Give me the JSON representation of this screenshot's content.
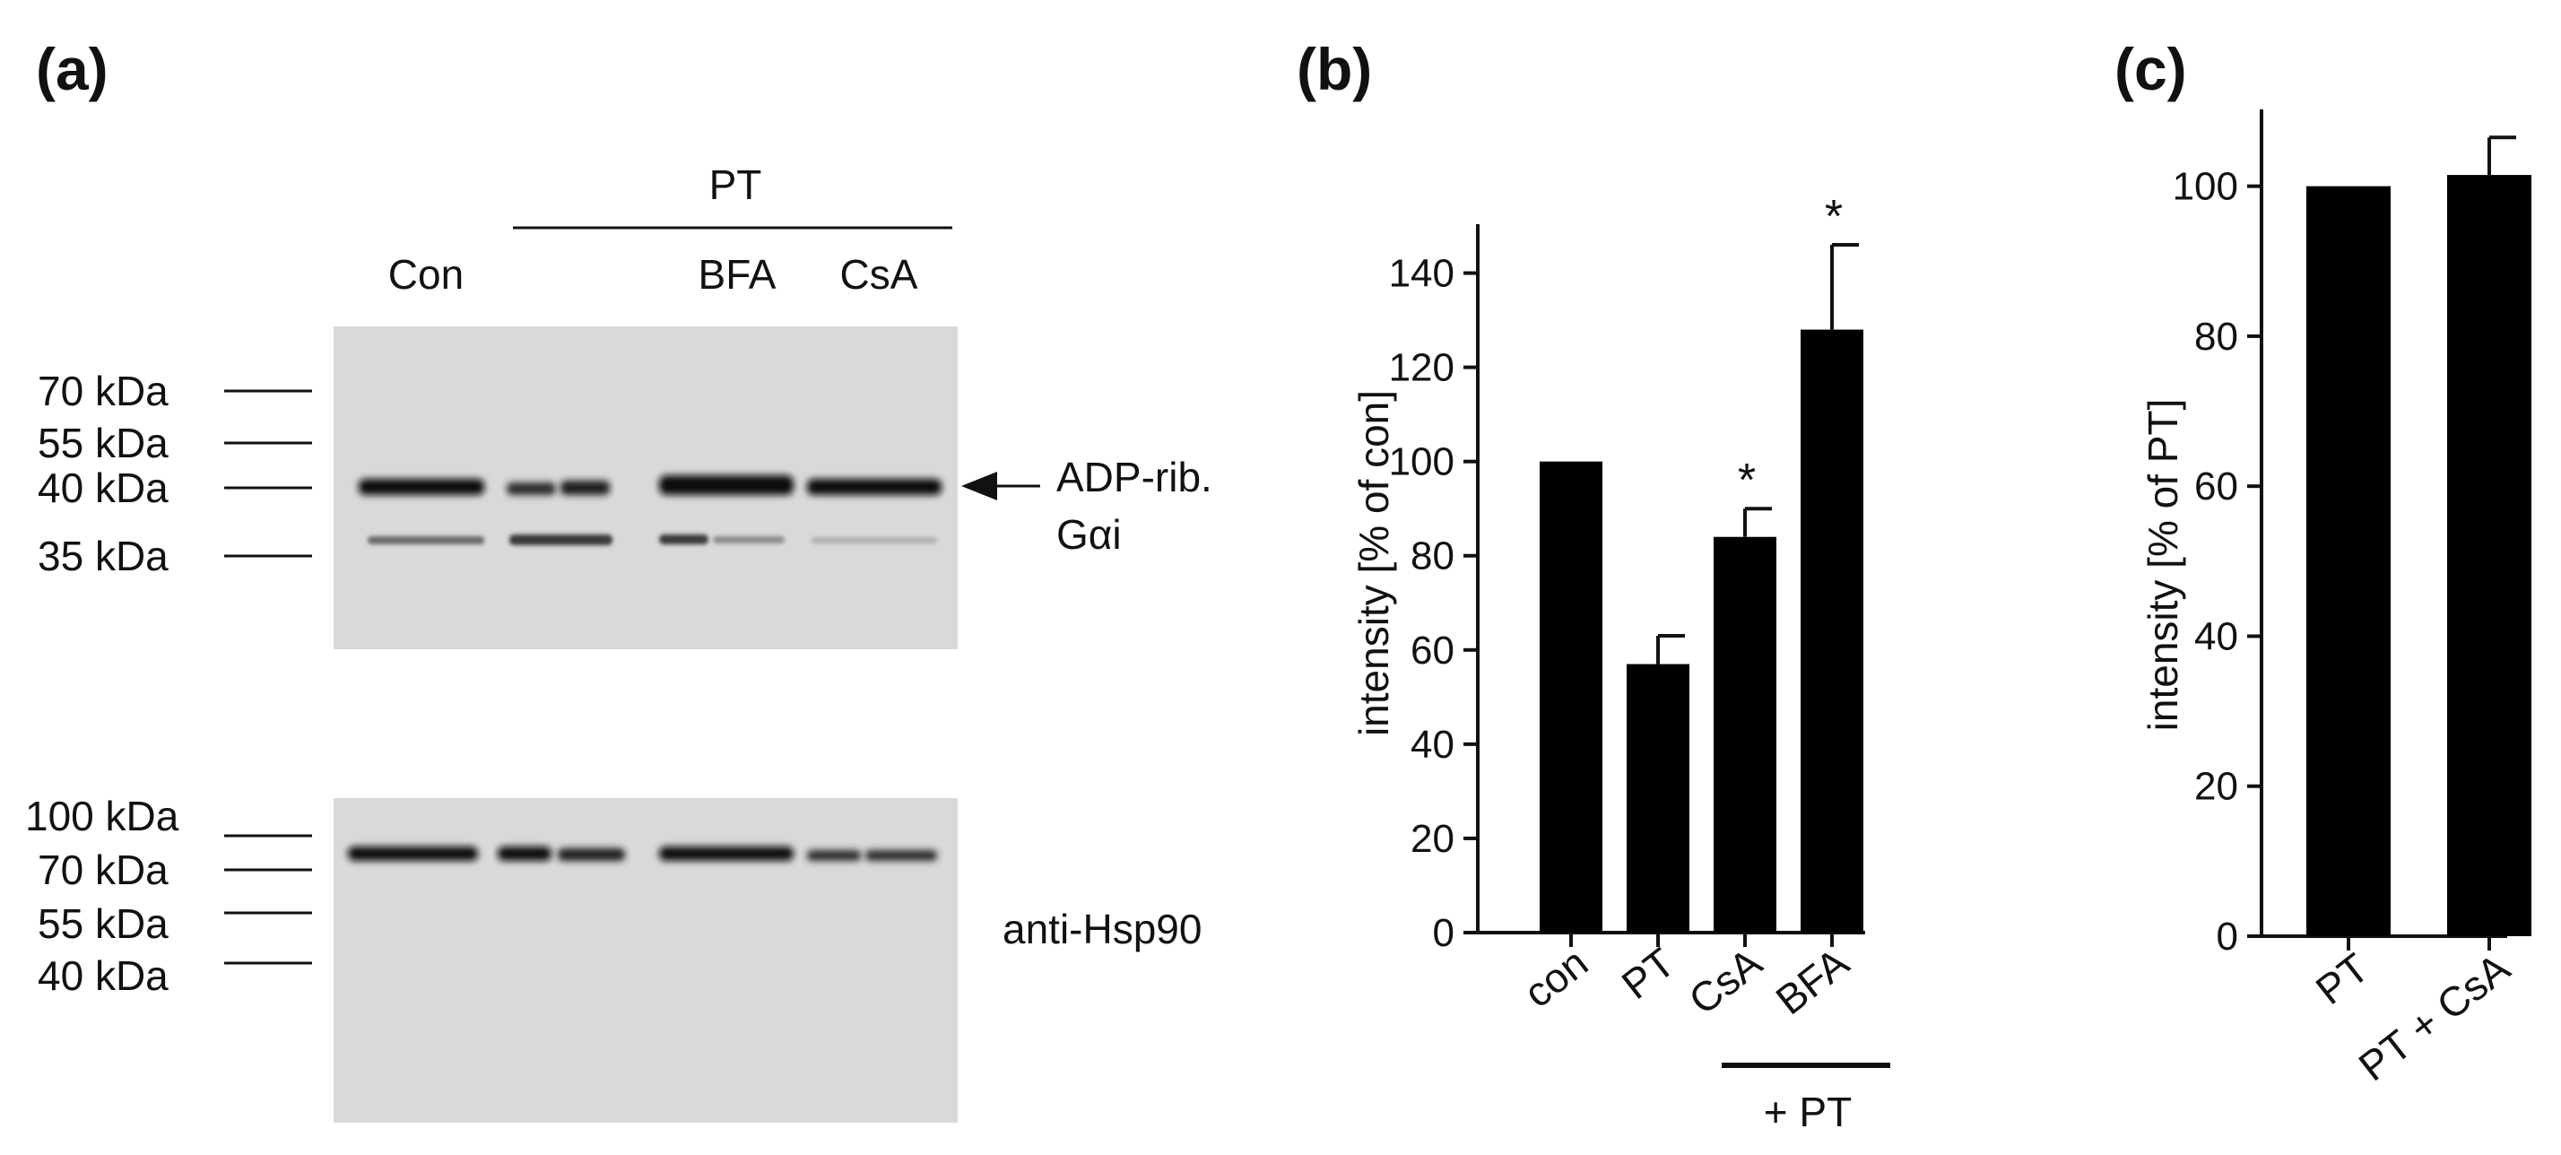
{
  "panel_a": {
    "label": "(a)",
    "treatment_label": "PT",
    "lane_labels": [
      "Con",
      "BFA",
      "CsA"
    ],
    "blot_top": {
      "markers": [
        "70 kDa",
        "55 kDa",
        "40 kDa",
        "35 kDa"
      ],
      "annotation_line1": "ADP-rib.",
      "annotation_line2": "Gαi"
    },
    "blot_bottom": {
      "markers": [
        "100 kDa",
        "70 kDa",
        "55 kDa",
        "40 kDa"
      ],
      "annotation": "anti-Hsp90"
    }
  },
  "chart_data": [
    {
      "panel_label": "(b)",
      "type": "bar",
      "categories": [
        "con",
        "PT",
        "CsA",
        "BFA"
      ],
      "values": [
        100,
        57,
        84,
        128
      ],
      "errors": [
        0,
        6,
        6,
        18
      ],
      "significance": [
        "",
        "",
        "*",
        "*"
      ],
      "ylabel": "intensity [% of con]",
      "ylim": [
        0,
        150
      ],
      "yticks": [
        0,
        20,
        40,
        60,
        80,
        100,
        120,
        140
      ],
      "group_label": "+ PT",
      "grid": false,
      "color": "#000000"
    },
    {
      "panel_label": "(c)",
      "type": "bar",
      "categories": [
        "PT",
        "PT + CsA"
      ],
      "values": [
        100,
        101.5
      ],
      "errors": [
        0,
        5
      ],
      "ylabel": "intensity [% of PT]",
      "ylim": [
        0,
        110
      ],
      "yticks": [
        0,
        20,
        40,
        60,
        80,
        100
      ],
      "grid": false,
      "color": "#000000"
    }
  ]
}
